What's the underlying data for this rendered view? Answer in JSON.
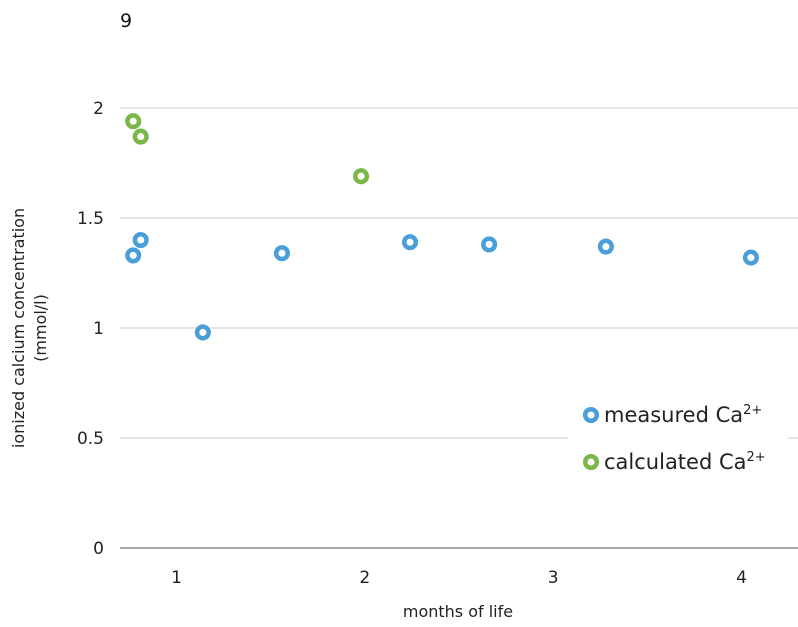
{
  "corner_label": "9",
  "chart_data": {
    "type": "scatter",
    "title": "",
    "xlabel": "months of life",
    "ylabel": [
      "ionized calcium concentration",
      "(mmol/l)"
    ],
    "xlim": [
      0.7,
      4.3
    ],
    "ylim": [
      0,
      2
    ],
    "x_ticks": [
      1,
      2,
      3,
      4
    ],
    "y_ticks": [
      0,
      0.5,
      1,
      1.5,
      2
    ],
    "y_tick_labels": [
      "0",
      "0.5",
      "1",
      "1.5",
      "2"
    ],
    "x_tick_labels": [
      "1",
      "2",
      "3",
      "4"
    ],
    "grid": "horizontal",
    "legend_position": "right",
    "series": [
      {
        "name": "measured Ca",
        "name_superscript": "2+",
        "color": "#4a9fd8",
        "points": [
          {
            "x": 0.77,
            "y": 1.33
          },
          {
            "x": 0.81,
            "y": 1.4
          },
          {
            "x": 1.14,
            "y": 0.98
          },
          {
            "x": 1.56,
            "y": 1.34
          },
          {
            "x": 2.24,
            "y": 1.39
          },
          {
            "x": 2.66,
            "y": 1.38
          },
          {
            "x": 3.28,
            "y": 1.37
          },
          {
            "x": 4.05,
            "y": 1.32
          }
        ]
      },
      {
        "name": "calculated Ca",
        "name_superscript": "2+",
        "color": "#7ab648",
        "points": [
          {
            "x": 0.77,
            "y": 1.94
          },
          {
            "x": 0.81,
            "y": 1.87
          },
          {
            "x": 1.98,
            "y": 1.69
          }
        ]
      }
    ]
  }
}
